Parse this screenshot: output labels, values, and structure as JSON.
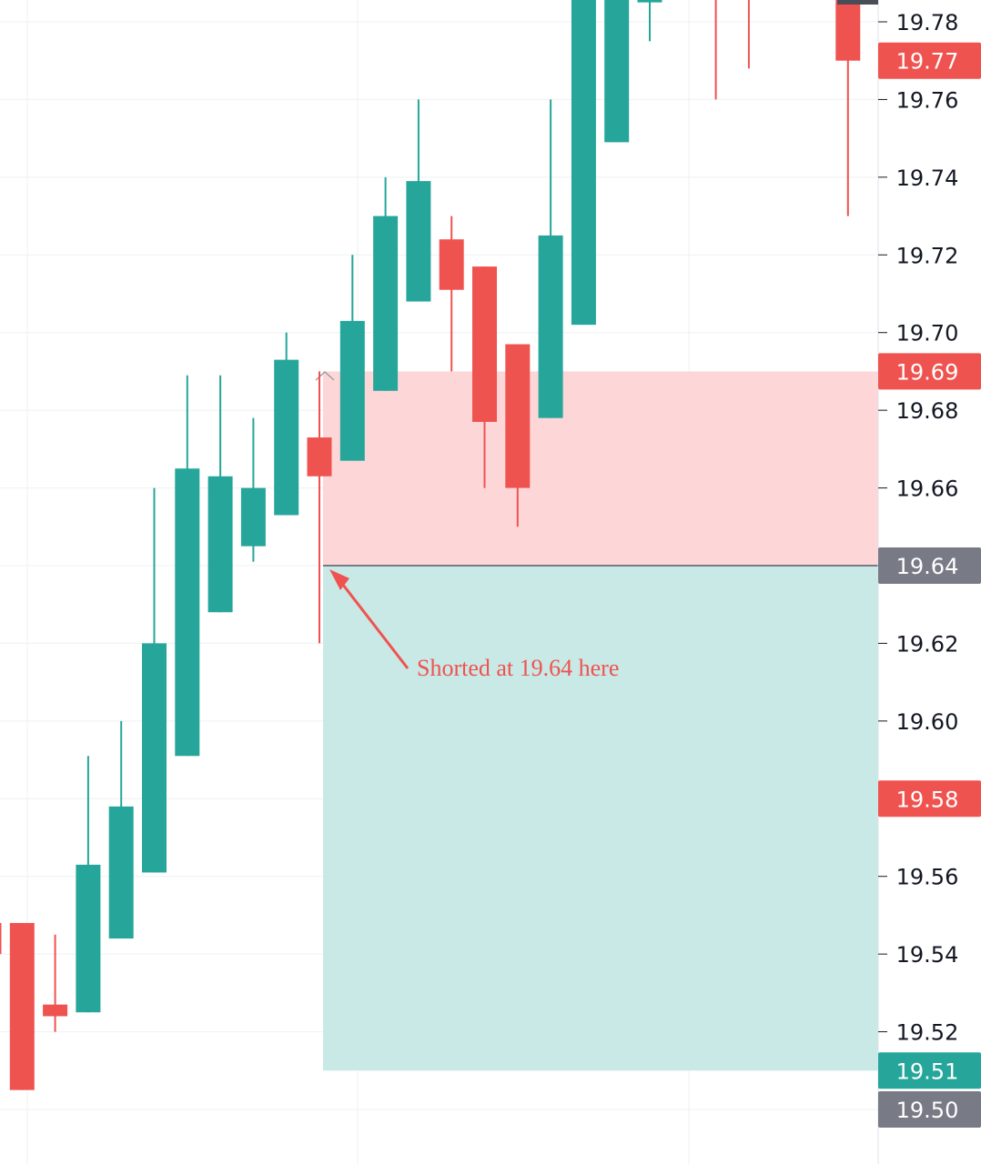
{
  "chart_data": {
    "type": "candlestick",
    "ylim": [
      19.49,
      19.793
    ],
    "grid": true,
    "colors": {
      "up": "#26a69a",
      "down": "#ef5350",
      "loss_zone": "#fdd7d7",
      "profit_zone": "#c9e9e6",
      "entry_line": "#787b86",
      "tag_gray": "#787b86",
      "grid": "#eef0f3",
      "text": "#131722",
      "annotation": "#ef5350"
    },
    "y_ticks": [
      "19.78",
      "19.76",
      "19.74",
      "19.72",
      "19.70",
      "19.68",
      "19.66",
      "19.64",
      "19.62",
      "19.60",
      "19.58",
      "19.56",
      "19.54",
      "19.52",
      "19.50"
    ],
    "candles": [
      {
        "o": 19.548,
        "h": 19.556,
        "l": 19.54,
        "c": 19.54
      },
      {
        "o": 19.548,
        "h": 19.548,
        "l": 19.505,
        "c": 19.505
      },
      {
        "o": 19.527,
        "h": 19.545,
        "l": 19.52,
        "c": 19.524
      },
      {
        "o": 19.525,
        "h": 19.591,
        "l": 19.525,
        "c": 19.563
      },
      {
        "o": 19.544,
        "h": 19.6,
        "l": 19.544,
        "c": 19.578
      },
      {
        "o": 19.561,
        "h": 19.66,
        "l": 19.561,
        "c": 19.62
      },
      {
        "o": 19.591,
        "h": 19.689,
        "l": 19.591,
        "c": 19.665
      },
      {
        "o": 19.628,
        "h": 19.689,
        "l": 19.628,
        "c": 19.663
      },
      {
        "o": 19.645,
        "h": 19.678,
        "l": 19.641,
        "c": 19.66
      },
      {
        "o": 19.653,
        "h": 19.7,
        "l": 19.653,
        "c": 19.693
      },
      {
        "o": 19.673,
        "h": 19.69,
        "l": 19.62,
        "c": 19.663
      },
      {
        "o": 19.667,
        "h": 19.72,
        "l": 19.667,
        "c": 19.703
      },
      {
        "o": 19.685,
        "h": 19.74,
        "l": 19.685,
        "c": 19.73
      },
      {
        "o": 19.708,
        "h": 19.76,
        "l": 19.708,
        "c": 19.739
      },
      {
        "o": 19.724,
        "h": 19.73,
        "l": 19.69,
        "c": 19.711
      },
      {
        "o": 19.717,
        "h": 19.717,
        "l": 19.66,
        "c": 19.677
      },
      {
        "o": 19.697,
        "h": 19.697,
        "l": 19.65,
        "c": 19.66
      },
      {
        "o": 19.678,
        "h": 19.76,
        "l": 19.678,
        "c": 19.725
      },
      {
        "o": 19.702,
        "h": 19.793,
        "l": 19.702,
        "c": 19.793
      },
      {
        "o": 19.749,
        "h": 19.793,
        "l": 19.749,
        "c": 19.793
      },
      {
        "o": 19.785,
        "h": 19.793,
        "l": 19.775,
        "c": 19.786
      },
      {
        "o": 19.793,
        "h": 19.793,
        "l": 19.793,
        "c": 19.793
      },
      {
        "o": 19.793,
        "h": 19.793,
        "l": 19.76,
        "c": 19.786
      },
      {
        "o": 19.793,
        "h": 19.793,
        "l": 19.768,
        "c": 19.787
      },
      {
        "o": 19.793,
        "h": 19.793,
        "l": 19.793,
        "c": 19.793
      },
      {
        "o": 19.793,
        "h": 19.793,
        "l": 19.79,
        "c": 19.793
      },
      {
        "o": 19.793,
        "h": 19.793,
        "l": 19.73,
        "c": 19.77
      }
    ],
    "position": {
      "side": "short",
      "entry": 19.64,
      "stop": 19.69,
      "target": 19.51
    },
    "price_tags": [
      {
        "label": "19.77",
        "value": 19.77,
        "kind": "down"
      },
      {
        "label": "19.69",
        "value": 19.69,
        "kind": "down"
      },
      {
        "label": "19.64",
        "value": 19.64,
        "kind": "gray"
      },
      {
        "label": "19.58",
        "value": 19.58,
        "kind": "down"
      },
      {
        "label": "19.51",
        "value": 19.51,
        "kind": "up"
      },
      {
        "label": "19.50",
        "value": 19.5,
        "kind": "gray"
      }
    ],
    "annotation": {
      "text": "Shorted at 19.64 here",
      "points_to": 19.64
    }
  }
}
